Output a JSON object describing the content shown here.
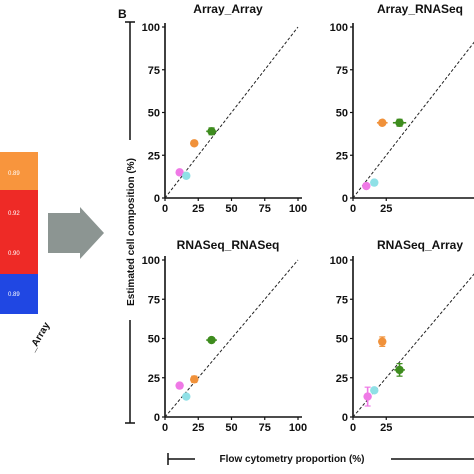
{
  "panel_letter": "B",
  "heatmap": {
    "cells": [
      {
        "value": "0.89",
        "color": "#f8953d"
      },
      {
        "value": "0.92",
        "color": "#ee2a26"
      },
      {
        "value": "0.90",
        "color": "#ee2a26"
      },
      {
        "value": "0.89",
        "color": "#2047e3"
      }
    ],
    "label": "_Array"
  },
  "axis_titles": {
    "y": "Estimated cell composition (%)",
    "x": "Flow cytometry proportion (%)"
  },
  "colors": {
    "green": "#3e8c1e",
    "orange": "#f0913a",
    "pink": "#ef79e6",
    "cyan": "#8fe0e6",
    "arrow": "#8c9592"
  },
  "chart_data": [
    {
      "type": "scatter",
      "title": "Array_Array",
      "xlim": [
        0,
        100
      ],
      "ylim": [
        0,
        100
      ],
      "x_ticks": [
        0,
        25,
        50,
        75,
        100
      ],
      "y_ticks": [
        0,
        25,
        50,
        75,
        100
      ],
      "diagonal": true,
      "points": [
        {
          "color": "green",
          "x": 35,
          "y": 39,
          "xerr": 4,
          "yerr": 2
        },
        {
          "color": "orange",
          "x": 22,
          "y": 32,
          "xerr": 3,
          "yerr": 1
        },
        {
          "color": "pink",
          "x": 11,
          "y": 15,
          "xerr": 1,
          "yerr": 1
        },
        {
          "color": "cyan",
          "x": 16,
          "y": 13,
          "xerr": 1,
          "yerr": 1
        }
      ]
    },
    {
      "type": "scatter",
      "title": "Array_RNASeq",
      "xlim": [
        0,
        100
      ],
      "ylim": [
        0,
        100
      ],
      "x_ticks": [
        0,
        25
      ],
      "y_ticks": [
        0,
        25,
        50,
        75,
        100
      ],
      "diagonal": true,
      "points": [
        {
          "color": "green",
          "x": 35,
          "y": 44,
          "xerr": 5,
          "yerr": 2
        },
        {
          "color": "orange",
          "x": 22,
          "y": 44,
          "xerr": 4,
          "yerr": 1
        },
        {
          "color": "pink",
          "x": 10,
          "y": 7,
          "xerr": 1,
          "yerr": 1
        },
        {
          "color": "cyan",
          "x": 16,
          "y": 9,
          "xerr": 1,
          "yerr": 1
        }
      ]
    },
    {
      "type": "scatter",
      "title": "RNASeq_RNASeq",
      "xlim": [
        0,
        100
      ],
      "ylim": [
        0,
        100
      ],
      "x_ticks": [
        0,
        25,
        50,
        75,
        100
      ],
      "y_ticks": [
        0,
        25,
        50,
        75,
        100
      ],
      "diagonal": true,
      "points": [
        {
          "color": "green",
          "x": 35,
          "y": 49,
          "xerr": 4,
          "yerr": 1
        },
        {
          "color": "orange",
          "x": 22,
          "y": 24,
          "xerr": 3,
          "yerr": 2
        },
        {
          "color": "pink",
          "x": 11,
          "y": 20,
          "xerr": 1,
          "yerr": 1
        },
        {
          "color": "cyan",
          "x": 16,
          "y": 13,
          "xerr": 1,
          "yerr": 1
        }
      ]
    },
    {
      "type": "scatter",
      "title": "RNASeq_Array",
      "xlim": [
        0,
        100
      ],
      "ylim": [
        0,
        100
      ],
      "x_ticks": [
        0,
        25
      ],
      "y_ticks": [
        0,
        25,
        50,
        75,
        100
      ],
      "diagonal": true,
      "points": [
        {
          "color": "green",
          "x": 35,
          "y": 30,
          "xerr": 4,
          "yerr": 4
        },
        {
          "color": "orange",
          "x": 22,
          "y": 48,
          "xerr": 2,
          "yerr": 3
        },
        {
          "color": "pink",
          "x": 11,
          "y": 13,
          "xerr": 1,
          "yerr": 6
        },
        {
          "color": "cyan",
          "x": 16,
          "y": 17,
          "xerr": 1,
          "yerr": 1
        }
      ]
    }
  ]
}
